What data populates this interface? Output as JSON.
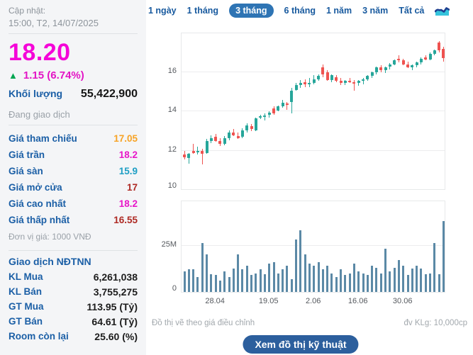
{
  "sidebar": {
    "updated_label": "Cập nhật:",
    "updated_time": "15:00, T2, 14/07/2025",
    "price": "18.20",
    "change": "1.15 (6.74%)",
    "volume_label": "Khối lượng",
    "volume_value": "55,422,900",
    "session_status": "Đang giao dịch",
    "price_table": [
      {
        "label": "Giá tham chiếu",
        "value": "17.05",
        "color": "#f7a325"
      },
      {
        "label": "Giá trần",
        "value": "18.2",
        "color": "#e816c8"
      },
      {
        "label": "Giá sàn",
        "value": "15.9",
        "color": "#1e9ec4"
      },
      {
        "label": "Giá mở cửa",
        "value": "17",
        "color": "#ae2a24"
      },
      {
        "label": "Giá cao nhất",
        "value": "18.2",
        "color": "#e816c8"
      },
      {
        "label": "Giá thấp nhất",
        "value": "16.55",
        "color": "#ae2a24"
      }
    ],
    "price_unit_note": "Đơn vị giá: 1000 VNĐ",
    "foreign_section_title": "Giao dịch NĐTNN",
    "foreign_rows": [
      {
        "label": "KL Mua",
        "value": "6,261,038"
      },
      {
        "label": "KL Bán",
        "value": "3,755,275"
      },
      {
        "label": "GT Mua",
        "value": "113.95 (Tỷ)"
      },
      {
        "label": "GT Bán",
        "value": "64.61 (Tỷ)"
      },
      {
        "label": "Room còn lại",
        "value": "25.60 (%)"
      }
    ]
  },
  "tabs": {
    "items": [
      "1 ngày",
      "1 tháng",
      "3 tháng",
      "6 tháng",
      "1 năm",
      "3 năm",
      "Tất cả"
    ],
    "selected": "3 tháng"
  },
  "footer": {
    "left_note": "Đồ thị vẽ theo giá điều chỉnh",
    "right_note": "đv KLg: 10,000cp",
    "button_label": "Xem đồ thị kỹ thuật"
  },
  "chart_data": {
    "type": "candlestick+volume-bar",
    "title": "",
    "price_axis": {
      "min": 10,
      "max": 17.93,
      "ticks": [
        16,
        14,
        12,
        10
      ]
    },
    "volume_axis": {
      "max_m": 48.5,
      "ticks": [
        {
          "v": 25,
          "label": "25M"
        },
        {
          "v": 0,
          "label": "0"
        }
      ]
    },
    "x_labels": [
      {
        "index": 7,
        "label": "28.04"
      },
      {
        "index": 19,
        "label": "19.05"
      },
      {
        "index": 29,
        "label": "2.06"
      },
      {
        "index": 39,
        "label": "16.06"
      },
      {
        "index": 49,
        "label": "30.06"
      }
    ],
    "colors": {
      "up": "#26a69a",
      "down": "#ef5350",
      "volume": "#5b89a6"
    },
    "candles_ohlc": [
      [
        11.75,
        11.95,
        11.5,
        11.62
      ],
      [
        11.6,
        11.85,
        11.3,
        11.82
      ],
      [
        11.95,
        12.3,
        11.8,
        11.85
      ],
      [
        11.9,
        12.15,
        11.75,
        11.95
      ],
      [
        11.95,
        12.05,
        11.25,
        11.8
      ],
      [
        11.85,
        12.55,
        11.8,
        12.45
      ],
      [
        12.45,
        12.75,
        12.35,
        12.6
      ],
      [
        12.65,
        12.8,
        12.4,
        12.45
      ],
      [
        12.45,
        12.6,
        12.2,
        12.3
      ],
      [
        12.3,
        12.7,
        12.25,
        12.6
      ],
      [
        12.6,
        13.0,
        12.5,
        12.9
      ],
      [
        12.9,
        13.05,
        12.7,
        12.75
      ],
      [
        12.7,
        12.9,
        12.55,
        12.6
      ],
      [
        12.65,
        13.1,
        12.6,
        13.0
      ],
      [
        13.0,
        13.35,
        12.9,
        13.25
      ],
      [
        13.2,
        13.3,
        12.95,
        13.05
      ],
      [
        13.0,
        13.65,
        12.95,
        13.6
      ],
      [
        13.65,
        13.8,
        13.55,
        13.7
      ],
      [
        13.7,
        13.85,
        13.5,
        13.75
      ],
      [
        13.8,
        13.95,
        13.65,
        13.9
      ],
      [
        14.1,
        14.2,
        13.8,
        13.85
      ],
      [
        14.0,
        14.25,
        13.95,
        14.2
      ],
      [
        14.2,
        14.55,
        14.15,
        14.4
      ],
      [
        14.35,
        14.45,
        14.05,
        14.3
      ],
      [
        14.45,
        15.15,
        13.85,
        15.0
      ],
      [
        15.05,
        15.4,
        15.0,
        15.3
      ],
      [
        15.3,
        15.55,
        15.15,
        15.4
      ],
      [
        15.45,
        15.6,
        15.2,
        15.35
      ],
      [
        15.35,
        15.65,
        15.2,
        15.4
      ],
      [
        15.4,
        15.8,
        15.35,
        15.6
      ],
      [
        15.6,
        15.85,
        15.5,
        15.75
      ],
      [
        16.2,
        16.35,
        15.7,
        15.85
      ],
      [
        15.95,
        16.05,
        15.5,
        15.55
      ],
      [
        15.55,
        15.85,
        15.45,
        15.8
      ],
      [
        15.7,
        15.8,
        15.45,
        15.5
      ],
      [
        15.5,
        15.65,
        15.3,
        15.4
      ],
      [
        15.4,
        15.55,
        15.3,
        15.5
      ],
      [
        15.5,
        15.65,
        15.4,
        15.45
      ],
      [
        15.45,
        15.55,
        15.0,
        15.4
      ],
      [
        15.4,
        15.55,
        15.25,
        15.5
      ],
      [
        15.5,
        15.65,
        15.35,
        15.6
      ],
      [
        15.6,
        15.8,
        15.5,
        15.75
      ],
      [
        15.75,
        16.0,
        15.65,
        15.95
      ],
      [
        15.95,
        16.25,
        15.85,
        16.2
      ],
      [
        16.2,
        16.3,
        15.95,
        16.05
      ],
      [
        16.05,
        16.25,
        15.9,
        16.2
      ],
      [
        16.25,
        16.4,
        16.1,
        16.35
      ],
      [
        16.35,
        16.6,
        16.3,
        16.55
      ],
      [
        16.65,
        16.8,
        16.45,
        16.55
      ],
      [
        16.55,
        16.65,
        16.3,
        16.35
      ],
      [
        16.35,
        16.5,
        16.15,
        16.2
      ],
      [
        16.2,
        16.35,
        16.05,
        16.3
      ],
      [
        16.3,
        16.5,
        16.2,
        16.45
      ],
      [
        16.45,
        16.7,
        16.35,
        16.65
      ],
      [
        16.7,
        16.8,
        16.55,
        16.6
      ],
      [
        16.6,
        16.95,
        16.55,
        16.9
      ],
      [
        16.9,
        17.1,
        16.8,
        17.05
      ],
      [
        17.45,
        17.55,
        16.95,
        17.05
      ],
      [
        17.15,
        17.25,
        16.5,
        16.65
      ]
    ],
    "volumes_m": [
      11,
      12,
      12,
      8,
      26,
      20,
      9.5,
      9,
      6,
      11,
      8,
      12.5,
      20,
      12,
      14,
      9,
      10,
      12,
      9.5,
      15,
      16,
      10,
      12,
      14,
      7,
      28,
      33,
      20,
      15,
      14,
      16,
      12,
      14,
      10,
      8,
      12,
      9,
      10,
      15,
      11,
      10,
      9,
      14,
      13,
      10,
      23,
      11,
      13,
      17,
      14,
      9,
      12.5,
      14,
      12.5,
      9.5,
      10,
      26,
      9.5,
      38
    ]
  }
}
